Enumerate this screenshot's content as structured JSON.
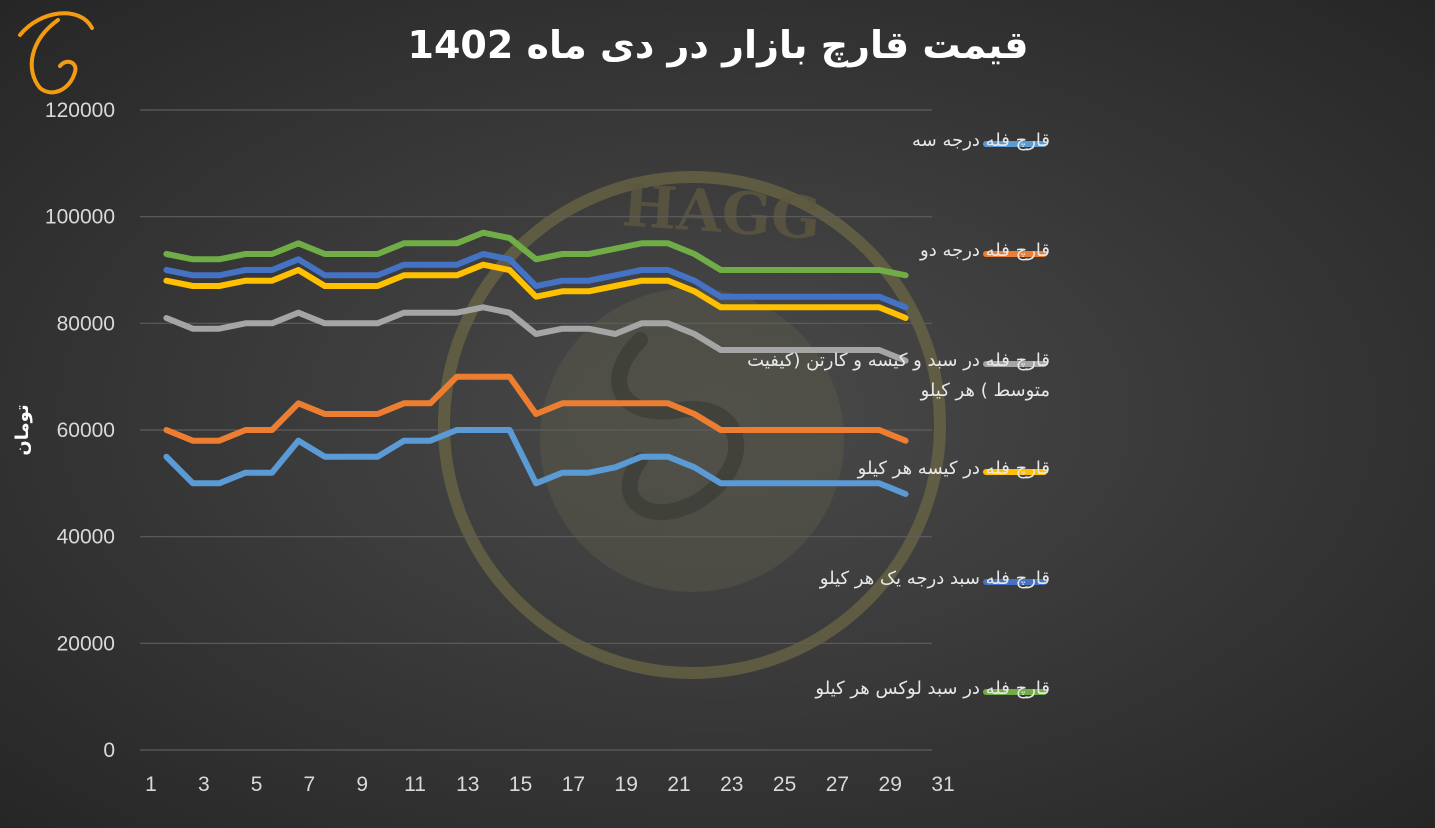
{
  "chart_data": {
    "type": "line",
    "title": "قیمت قارچ بازار در دی ماه 1402",
    "xlabel": "",
    "ylabel": "تومان",
    "xlim": [
      1,
      31
    ],
    "ylim": [
      0,
      120000
    ],
    "x_ticks": [
      1,
      3,
      5,
      7,
      9,
      11,
      13,
      15,
      17,
      19,
      21,
      23,
      25,
      27,
      29,
      31
    ],
    "y_ticks": [
      0,
      20000,
      40000,
      60000,
      80000,
      100000,
      120000
    ],
    "grid": true,
    "legend_position": "right",
    "x": [
      2,
      3,
      4,
      5,
      6,
      7,
      8,
      9,
      10,
      11,
      12,
      13,
      14,
      15,
      16,
      17,
      18,
      19,
      20,
      21,
      22,
      23,
      24,
      25,
      26,
      27,
      28,
      29,
      30
    ],
    "series": [
      {
        "name": "قارچ فله درجه سه",
        "color": "#5b9bd5",
        "values": [
          55000,
          50000,
          50000,
          52000,
          52000,
          58000,
          55000,
          55000,
          55000,
          58000,
          58000,
          60000,
          60000,
          60000,
          50000,
          52000,
          52000,
          53000,
          55000,
          55000,
          53000,
          50000,
          50000,
          50000,
          50000,
          50000,
          50000,
          50000,
          48000
        ]
      },
      {
        "name": "قارچ فله درجه دو",
        "color": "#ed7d31",
        "values": [
          60000,
          58000,
          58000,
          60000,
          60000,
          65000,
          63000,
          63000,
          63000,
          65000,
          65000,
          70000,
          70000,
          70000,
          63000,
          65000,
          65000,
          65000,
          65000,
          65000,
          63000,
          60000,
          60000,
          60000,
          60000,
          60000,
          60000,
          60000,
          58000
        ]
      },
      {
        "name": "قارچ فله در سبد و کیسه و کارتن (کیفیت متوسط ) هر کیلو",
        "name_lines": [
          "قارچ فله در سبد و کیسه و کارتن (کیفیت",
          "متوسط ) هر کیلو"
        ],
        "color": "#a5a5a5",
        "values": [
          81000,
          79000,
          79000,
          80000,
          80000,
          82000,
          80000,
          80000,
          80000,
          82000,
          82000,
          82000,
          83000,
          82000,
          78000,
          79000,
          79000,
          78000,
          80000,
          80000,
          78000,
          75000,
          75000,
          75000,
          75000,
          75000,
          75000,
          75000,
          73000
        ]
      },
      {
        "name": "قارچ فله در کیسه هر کیلو",
        "color": "#ffc000",
        "values": [
          88000,
          87000,
          87000,
          88000,
          88000,
          90000,
          87000,
          87000,
          87000,
          89000,
          89000,
          89000,
          91000,
          90000,
          85000,
          86000,
          86000,
          87000,
          88000,
          88000,
          86000,
          83000,
          83000,
          83000,
          83000,
          83000,
          83000,
          83000,
          81000
        ]
      },
      {
        "name": "قارچ فله سبد درجه یک هر کیلو",
        "color": "#4472c4",
        "values": [
          90000,
          89000,
          89000,
          90000,
          90000,
          92000,
          89000,
          89000,
          89000,
          91000,
          91000,
          91000,
          93000,
          92000,
          87000,
          88000,
          88000,
          89000,
          90000,
          90000,
          88000,
          85000,
          85000,
          85000,
          85000,
          85000,
          85000,
          85000,
          83000
        ]
      },
      {
        "name": "قارچ فله در سبد لوکس هر کیلو",
        "color": "#70ad47",
        "values": [
          93000,
          92000,
          92000,
          93000,
          93000,
          95000,
          93000,
          93000,
          93000,
          95000,
          95000,
          95000,
          97000,
          96000,
          92000,
          93000,
          93000,
          94000,
          95000,
          95000,
          93000,
          90000,
          90000,
          90000,
          90000,
          90000,
          90000,
          90000,
          89000
        ]
      }
    ]
  },
  "watermark": {
    "text": "HAGG",
    "logo_icon": "hagg-mushroom-logo-icon"
  },
  "brand_logo": {
    "icon": "orange-calligraphy-logo-icon",
    "color": "#f39c12"
  }
}
